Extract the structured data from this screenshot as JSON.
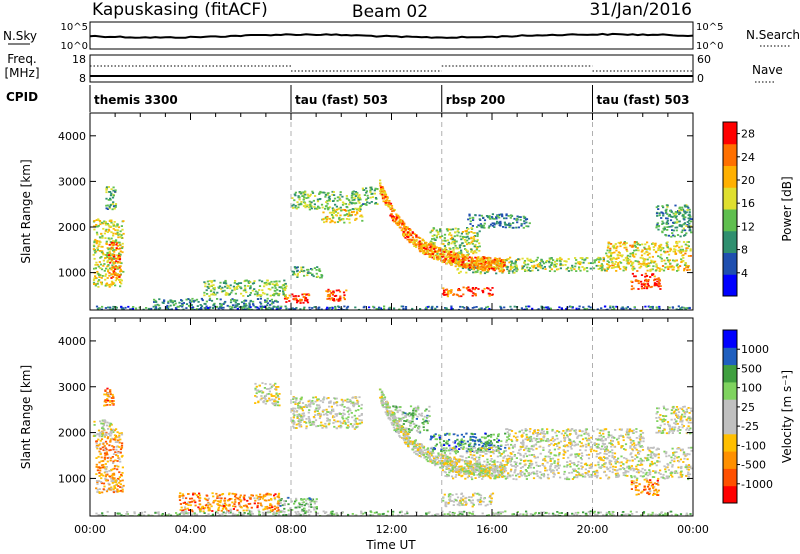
{
  "header": {
    "station": "Kapuskasing (fitACF)",
    "beam": "Beam 02",
    "date": "31/Jan/2016"
  },
  "panels": {
    "nsky": {
      "label": "N.Sky",
      "ticks_left": [
        "10^5",
        "10^0"
      ],
      "ticks_right": [
        "10^5",
        "10^0"
      ],
      "right_label": "N.Search"
    },
    "freq": {
      "label_top": "Freq.",
      "label_unit": "[MHz]",
      "ticks_left": [
        "18",
        "8"
      ],
      "ticks_right": [
        "60",
        "0"
      ],
      "right_label": "Nave"
    },
    "cpid": {
      "label": "CPID"
    }
  },
  "cpid_blocks": [
    {
      "name": "themis 3300",
      "start_h": 0.0
    },
    {
      "name": "tau (fast) 503",
      "start_h": 8.0
    },
    {
      "name": "rbsp 200",
      "start_h": 14.0
    },
    {
      "name": "tau (fast) 503",
      "start_h": 20.0
    }
  ],
  "chart_data": [
    {
      "type": "heatmap",
      "name": "Power",
      "ylabel": "Slant Range [km]",
      "xlim_hours": [
        0,
        24
      ],
      "ylim_km": [
        180,
        4500
      ],
      "yticks": [
        1000,
        2000,
        3000,
        4000
      ],
      "colorbar": {
        "label": "Power [dB]",
        "range": [
          0,
          30
        ],
        "ticks": [
          "4",
          "8",
          "12",
          "16",
          "20",
          "24",
          "28"
        ],
        "colors": [
          "#0000ff",
          "#1f4faf",
          "#2f8f6f",
          "#5fbf4f",
          "#dfdf2f",
          "#ffb000",
          "#ff7000",
          "#ff0000"
        ]
      },
      "regions": [
        {
          "t0": 0.1,
          "t1": 1.3,
          "r0": 700,
          "r1": 2200,
          "level": 0.55
        },
        {
          "t0": 0.7,
          "t1": 1.2,
          "r0": 900,
          "r1": 1700,
          "level": 0.8
        },
        {
          "t0": 0.6,
          "t1": 1.0,
          "r0": 2400,
          "r1": 2900,
          "level": 0.4
        },
        {
          "t0": 2.5,
          "t1": 7.5,
          "r0": 180,
          "r1": 450,
          "level": 0.3
        },
        {
          "t0": 4.5,
          "t1": 7.8,
          "r0": 500,
          "r1": 850,
          "level": 0.45
        },
        {
          "t0": 7.7,
          "t1": 8.7,
          "r0": 350,
          "r1": 550,
          "level": 0.85
        },
        {
          "t0": 8.0,
          "t1": 10.8,
          "r0": 2400,
          "r1": 2800,
          "level": 0.45
        },
        {
          "t0": 9.2,
          "t1": 10.8,
          "r0": 2100,
          "r1": 2400,
          "level": 0.6
        },
        {
          "t0": 10.8,
          "t1": 11.4,
          "r0": 2500,
          "r1": 2900,
          "level": 0.4
        },
        {
          "t0": 8.0,
          "t1": 9.2,
          "r0": 900,
          "r1": 1150,
          "level": 0.4
        },
        {
          "t0": 9.3,
          "t1": 10.2,
          "r0": 400,
          "r1": 650,
          "level": 0.85
        },
        {
          "t0": 14.0,
          "t1": 16.0,
          "r0": 500,
          "r1": 700,
          "level": 0.85
        },
        {
          "t0": 13.5,
          "t1": 15.5,
          "r0": 1400,
          "r1": 2000,
          "level": 0.5
        },
        {
          "t0": 14.5,
          "t1": 17.0,
          "r0": 1000,
          "r1": 1300,
          "level": 0.45
        },
        {
          "t0": 15.0,
          "t1": 17.5,
          "r0": 2000,
          "r1": 2300,
          "level": 0.3
        },
        {
          "t0": 16.5,
          "t1": 20.5,
          "r0": 1050,
          "r1": 1350,
          "level": 0.5
        },
        {
          "t0": 20.5,
          "t1": 23.9,
          "r0": 1050,
          "r1": 1700,
          "level": 0.6
        },
        {
          "t0": 21.5,
          "t1": 22.7,
          "r0": 650,
          "r1": 1000,
          "level": 0.9
        },
        {
          "t0": 22.5,
          "t1": 23.9,
          "r0": 1800,
          "r1": 2500,
          "level": 0.35
        },
        {
          "t0": 0.2,
          "t1": 23.9,
          "r0": 180,
          "r1": 280,
          "level": 0.25
        }
      ],
      "arc": {
        "t0": 11.5,
        "t1": 16.5,
        "r_start": 2900,
        "r_end": 1150,
        "level": 0.75
      }
    },
    {
      "type": "heatmap",
      "name": "Velocity",
      "ylabel": "Slant Range [km]",
      "xlabel": "Time UT",
      "xlim_hours": [
        0,
        24
      ],
      "ylim_km": [
        180,
        4500
      ],
      "yticks": [
        1000,
        2000,
        3000,
        4000
      ],
      "xticks": [
        "00:00",
        "04:00",
        "08:00",
        "12:00",
        "16:00",
        "20:00",
        "00:00"
      ],
      "colorbar": {
        "label": "Velocity [m s⁻¹]",
        "range": [
          -1000,
          1000
        ],
        "ticks": [
          "1000",
          "500",
          "100",
          "25",
          "-25",
          "-100",
          "-500",
          "-1000"
        ],
        "colors": [
          "#ff0000",
          "#ff5000",
          "#ff9000",
          "#ffbf00",
          "#c0c0c0",
          "#c0c0c0",
          "#7fd35f",
          "#3f9f3f",
          "#1f5fbf",
          "#0000ff"
        ]
      },
      "regions": [
        {
          "t0": 0.2,
          "t1": 1.3,
          "r0": 700,
          "r1": 2100,
          "level": 0.3
        },
        {
          "t0": 0.1,
          "t1": 0.9,
          "r0": 1900,
          "r1": 2300,
          "level": 0.5
        },
        {
          "t0": 0.5,
          "t1": 0.9,
          "r0": 2600,
          "r1": 3000,
          "level": 0.25
        },
        {
          "t0": 3.5,
          "t1": 7.5,
          "r0": 300,
          "r1": 700,
          "level": 0.25
        },
        {
          "t0": 7.5,
          "t1": 9.0,
          "r0": 300,
          "r1": 600,
          "level": 0.65
        },
        {
          "t0": 8.0,
          "t1": 10.8,
          "r0": 2100,
          "r1": 2800,
          "level": 0.5
        },
        {
          "t0": 6.5,
          "t1": 7.5,
          "r0": 2600,
          "r1": 3100,
          "level": 0.5
        },
        {
          "t0": 12.0,
          "t1": 13.5,
          "r0": 2000,
          "r1": 2600,
          "level": 0.65
        },
        {
          "t0": 13.5,
          "t1": 16.5,
          "r0": 1600,
          "r1": 2000,
          "level": 0.75
        },
        {
          "t0": 14.0,
          "t1": 16.0,
          "r0": 400,
          "r1": 700,
          "level": 0.5
        },
        {
          "t0": 14.0,
          "t1": 23.9,
          "r0": 1000,
          "r1": 1700,
          "level": 0.5
        },
        {
          "t0": 16.5,
          "t1": 22.0,
          "r0": 1700,
          "r1": 2100,
          "level": 0.5
        },
        {
          "t0": 21.5,
          "t1": 22.6,
          "r0": 650,
          "r1": 1000,
          "level": 0.25
        },
        {
          "t0": 22.5,
          "t1": 23.9,
          "r0": 2000,
          "r1": 2600,
          "level": 0.5
        },
        {
          "t0": 0.2,
          "t1": 23.9,
          "r0": 180,
          "r1": 300,
          "level": 0.6
        }
      ],
      "arc": {
        "t0": 11.5,
        "t1": 16.5,
        "r_start": 2900,
        "r_end": 1150,
        "level": 0.5
      }
    }
  ]
}
